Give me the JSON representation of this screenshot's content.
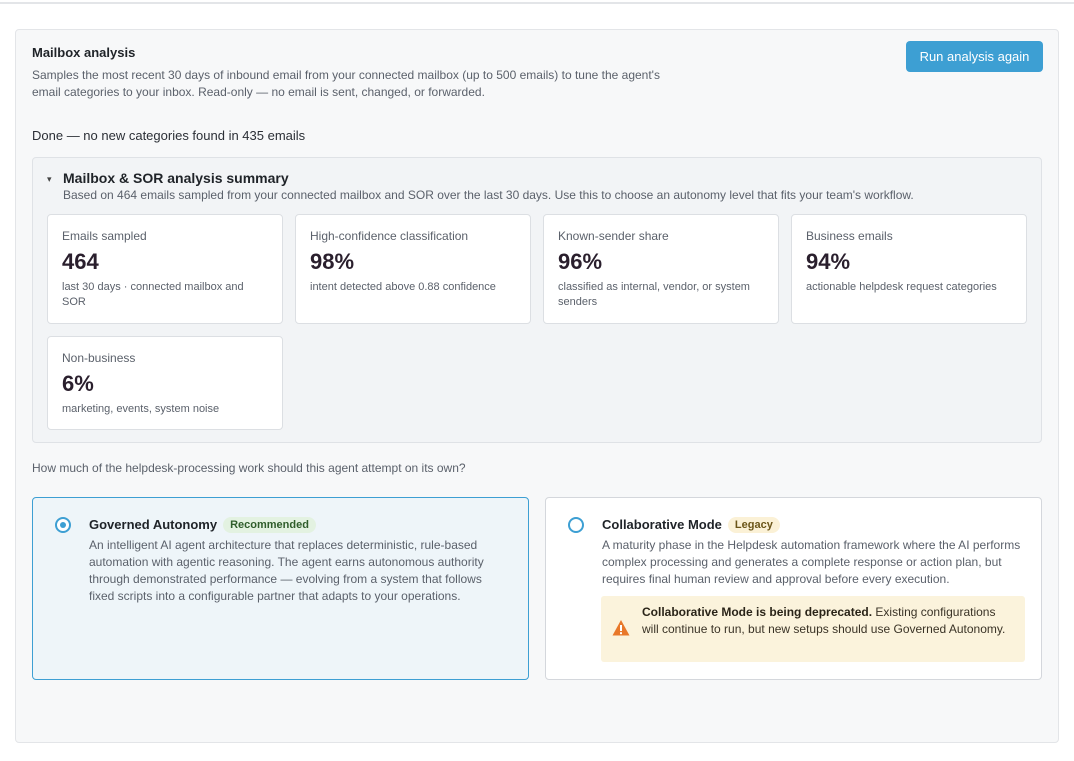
{
  "mailbox": {
    "title": "Mailbox analysis",
    "description": "Samples the most recent 30 days of inbound email from your connected mailbox (up to 500 emails) to tune the agent's email categories to your inbox. Read-only — no email is sent, changed, or forwarded.",
    "run_button": "Run analysis again",
    "status": "Done — no new categories found in 435 emails"
  },
  "summary": {
    "toggle": "▾",
    "title": "Mailbox & SOR analysis summary",
    "subtitle": "Based on 464 emails sampled from your connected mailbox and SOR over the last 30 days. Use this to choose an autonomy level that fits your team's workflow.",
    "stats": [
      {
        "label": "Emails sampled",
        "value": "464",
        "note": "last 30 days · connected mailbox and SOR"
      },
      {
        "label": "High-confidence classification",
        "value": "98%",
        "note": "intent detected above 0.88 confidence"
      },
      {
        "label": "Known-sender share",
        "value": "96%",
        "note": "classified as internal, vendor, or system senders"
      },
      {
        "label": "Business emails",
        "value": "94%",
        "note": "actionable helpdesk request categories"
      },
      {
        "label": "Non-business",
        "value": "6%",
        "note": "marketing, events, system noise"
      }
    ]
  },
  "autonomy": {
    "question": "How much of the helpdesk-processing work should this agent attempt on its own?",
    "options": [
      {
        "title": "Governed Autonomy",
        "badge": "Recommended",
        "selected": true,
        "description": "An intelligent AI agent architecture that replaces deterministic, rule-based automation with agentic reasoning. The agent earns autonomous authority through demonstrated performance — evolving from a system that follows fixed scripts into a configurable partner that adapts to your operations."
      },
      {
        "title": "Collaborative Mode",
        "badge": "Legacy",
        "selected": false,
        "description": "A maturity phase in the Helpdesk automation framework where the AI performs complex processing and generates a complete response or action plan, but requires final human review and approval before every execution.",
        "warning_bold": "Collaborative Mode is being deprecated.",
        "warning_text": " Existing configurations will continue to run, but new setups should use Governed Autonomy.",
        "warning_icon": "warning-triangle-icon"
      }
    ]
  },
  "colors": {
    "accent": "#3d9fd3",
    "warning_bg": "#fbf3dc",
    "warning_icon": "#e8782a",
    "recommended_badge": "#e3f2e1",
    "legacy_badge": "#fbf1d6"
  }
}
